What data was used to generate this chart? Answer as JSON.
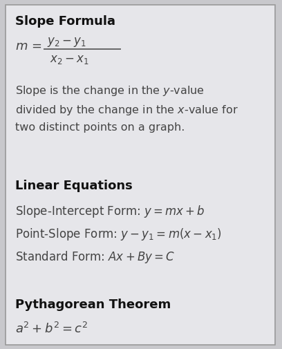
{
  "bg_color": "#c8c8cc",
  "box_color": "#e6e6ea",
  "border_color": "#999999",
  "text_color": "#444444",
  "title_color": "#111111",
  "section1_title": "Slope Formula",
  "section1_desc": "Slope is the change in the $y$-value\ndivided by the change in the $x$-value for\ntwo distinct points on a graph.",
  "section2_title": "Linear Equations",
  "section2_line1": "Slope-Intercept Form: $y = mx + b$",
  "section2_line2": "Point-Slope Form: $y - y_1 = m(x - x_1)$",
  "section2_line3": "Standard Form: $Ax + By = C$",
  "section3_title": "Pythagorean Theorem",
  "section3_formula": "$a^2 + b^2 = c^2$",
  "figsize": [
    4.08,
    5.06
  ],
  "dpi": 100
}
